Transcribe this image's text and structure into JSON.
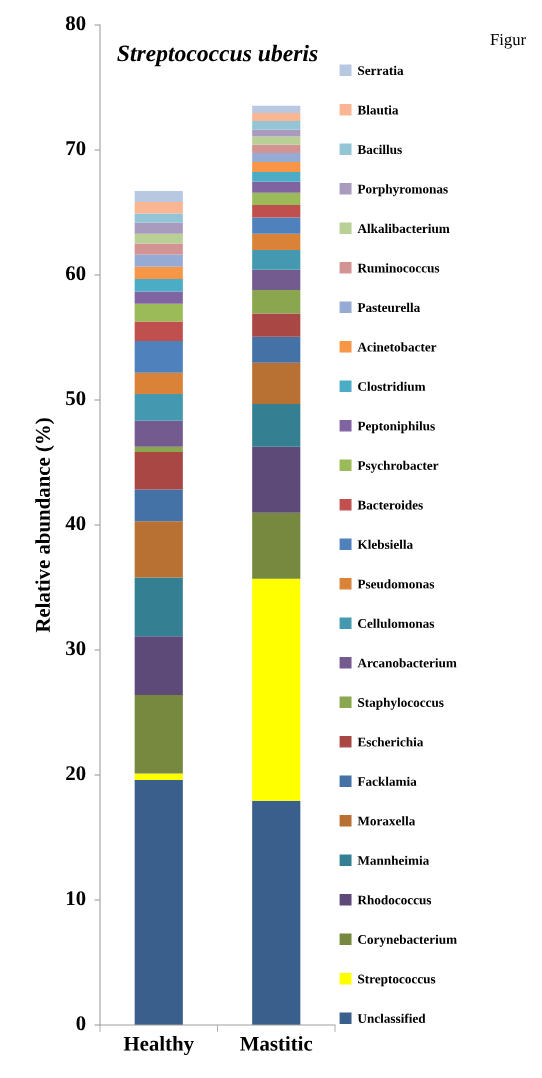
{
  "chart_data": {
    "type": "bar",
    "title": "Streptococcus uberis",
    "ylabel": "Relative abundance (%)",
    "stacked": true,
    "categories": [
      "Healthy",
      "Mastitic"
    ],
    "series": [
      {
        "name": "Unclassified",
        "color": "#3a5f8c",
        "values": [
          19.6,
          17.95
        ]
      },
      {
        "name": "Streptococcus",
        "color": "#ffff00",
        "values": [
          0.53,
          17.76
        ]
      },
      {
        "name": "Corynebacterium",
        "color": "#77893f",
        "values": [
          6.27,
          5.28
        ]
      },
      {
        "name": "Rhodococcus",
        "color": "#5e4a78",
        "values": [
          4.7,
          5.28
        ]
      },
      {
        "name": "Mannheimia",
        "color": "#357f92",
        "values": [
          4.7,
          3.41
        ]
      },
      {
        "name": "Moraxella",
        "color": "#b87132",
        "values": [
          4.5,
          3.31
        ]
      },
      {
        "name": "Facklamia",
        "color": "#4472a6",
        "values": [
          2.55,
          2.08
        ]
      },
      {
        "name": "Escherichia",
        "color": "#a84744",
        "values": [
          2.99,
          1.86
        ]
      },
      {
        "name": "Staphylococcus",
        "color": "#8aa64e",
        "values": [
          0.43,
          1.87
        ]
      },
      {
        "name": "Arcanobacterium",
        "color": "#735a8f",
        "values": [
          2.08,
          1.63
        ]
      },
      {
        "name": "Cellulomonas",
        "color": "#4499b0",
        "values": [
          2.13,
          1.57
        ]
      },
      {
        "name": "Pseudomonas",
        "color": "#db8239",
        "values": [
          1.71,
          1.31
        ]
      },
      {
        "name": "Klebsiella",
        "color": "#4f81bd",
        "values": [
          2.53,
          1.3
        ]
      },
      {
        "name": "Bacteroides",
        "color": "#c0504d",
        "values": [
          1.57,
          0.99
        ]
      },
      {
        "name": "Psychrobacter",
        "color": "#9bbb59",
        "values": [
          1.42,
          0.99
        ]
      },
      {
        "name": "Peptoniphilus",
        "color": "#8064a2",
        "values": [
          0.98,
          0.88
        ]
      },
      {
        "name": "Clostridium",
        "color": "#4bacc6",
        "values": [
          0.99,
          0.77
        ]
      },
      {
        "name": "Acinetobacter",
        "color": "#f79646",
        "values": [
          0.99,
          0.8
        ]
      },
      {
        "name": "Pasteurella",
        "color": "#95abd4",
        "values": [
          0.98,
          0.72
        ]
      },
      {
        "name": "Ruminococcus",
        "color": "#d39393",
        "values": [
          0.88,
          0.67
        ]
      },
      {
        "name": "Alkalibacterium",
        "color": "#b8cf96",
        "values": [
          0.78,
          0.66
        ]
      },
      {
        "name": "Porphyromonas",
        "color": "#a99bbe",
        "values": [
          0.88,
          0.56
        ]
      },
      {
        "name": "Bacillus",
        "color": "#93c5d6",
        "values": [
          0.74,
          0.67
        ]
      },
      {
        "name": "Blautia",
        "color": "#fab592",
        "values": [
          0.91,
          0.64
        ]
      },
      {
        "name": "Serratia",
        "color": "#b9c8e1",
        "values": [
          0.88,
          0.59
        ]
      }
    ],
    "ylim": [
      0,
      80
    ],
    "yticks": [
      0,
      10,
      20,
      30,
      40,
      50,
      60,
      70,
      80
    ],
    "grid": false,
    "legend": "right",
    "annotations": [
      "Figur"
    ]
  }
}
